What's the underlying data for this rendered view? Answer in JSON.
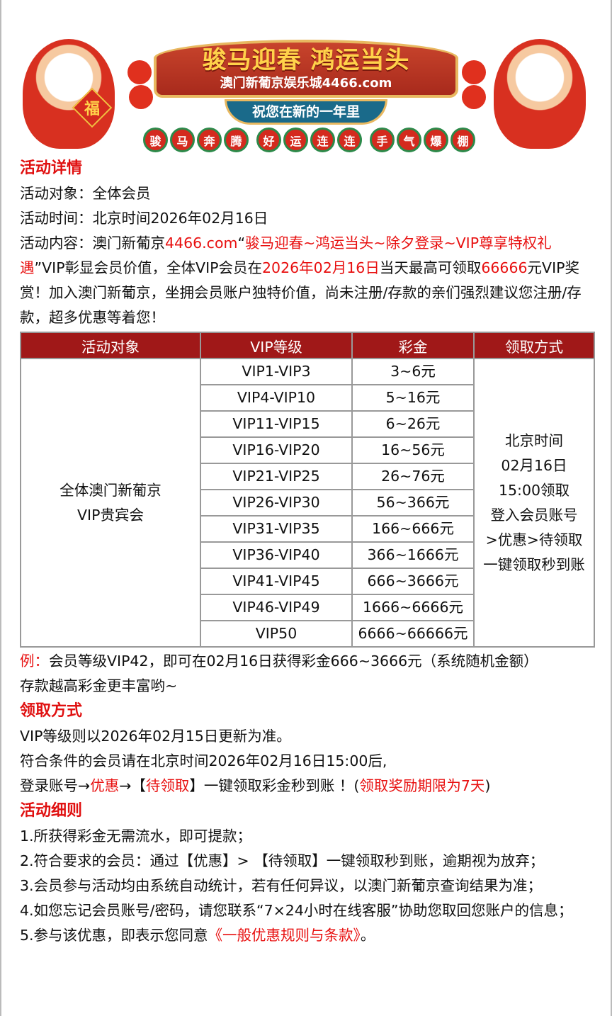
{
  "banner": {
    "title": "骏马迎春 鸿运当头",
    "subtitle": "澳门新葡京娱乐城4466.com",
    "ribbon": "祝您在新的一年里",
    "coins": [
      "骏",
      "马",
      "奔",
      "腾",
      "好",
      "运",
      "连",
      "连",
      "手",
      "气",
      "爆",
      "棚"
    ],
    "badge": "福"
  },
  "details": {
    "heading": "活动详情",
    "target": "活动对象：全体会员",
    "time": "活动时间：北京时间2026年02月16日",
    "content": [
      {
        "t": "活动内容：澳门新葡京",
        "r": false
      },
      {
        "t": "4466.com",
        "r": true
      },
      {
        "t": "“",
        "r": false
      },
      {
        "t": "骏马迎春~鸿运当头~除夕登录~VIP尊享特权礼遇",
        "r": true
      },
      {
        "t": "”VIP彰显会员价值，全体VIP会员在",
        "r": false
      },
      {
        "t": "2026年02月16日",
        "r": true
      },
      {
        "t": "当天最高可领取",
        "r": false
      },
      {
        "t": "66666",
        "r": true
      },
      {
        "t": "元VIP奖赏！加入澳门新葡京，坐拥会员账户独特价值，尚未注册/存款的亲们强烈建议您注册/存款，超多优惠等着您！",
        "r": false
      }
    ]
  },
  "table": {
    "headers": [
      "活动对象",
      "VIP等级",
      "彩金",
      "领取方式"
    ],
    "target": [
      "全体澳门新葡京",
      "VIP贵宾会"
    ],
    "rows": [
      [
        "VIP1-VIP3",
        "3~6元"
      ],
      [
        "VIP4-VIP10",
        "5~16元"
      ],
      [
        "VIP11-VIP15",
        "6~26元"
      ],
      [
        "VIP16-VIP20",
        "16~56元"
      ],
      [
        "VIP21-VIP25",
        "26~76元"
      ],
      [
        "VIP26-VIP30",
        "56~366元"
      ],
      [
        "VIP31-VIP35",
        "166~666元"
      ],
      [
        "VIP36-VIP40",
        "366~1666元"
      ],
      [
        "VIP41-VIP45",
        "666~3666元"
      ],
      [
        "VIP46-VIP49",
        "1666~6666元"
      ],
      [
        "VIP50",
        "6666~66666元"
      ]
    ],
    "method": [
      "北京时间",
      "02月16日",
      "15:00领取",
      "登入会员账号",
      ">优惠>待领取",
      "一键领取秒到账"
    ]
  },
  "example": {
    "label": "例：",
    "text": "会员等级VIP42，即可在02月16日获得彩金666~3666元（系统随机金额）",
    "text2": "存款越高彩金更丰富哟~"
  },
  "claim": {
    "heading": "领取方式",
    "l1": "VIP等级则以2026年02月15日更新为准。",
    "l2": "符合条件的会员请在北京时间2026年02月16日15:00后,",
    "l3": [
      {
        "t": "登录账号→",
        "r": false
      },
      {
        "t": "优惠",
        "r": true
      },
      {
        "t": "→【",
        "r": false
      },
      {
        "t": "待领取",
        "r": true
      },
      {
        "t": "】一键领取彩金秒到账 ！(",
        "r": false
      },
      {
        "t": "领取奖励期限为7天",
        "r": true
      },
      {
        "t": ")",
        "r": false
      }
    ]
  },
  "rules": {
    "heading": "活动细则",
    "items": [
      "1.所获得彩金无需流水，即可提款；",
      "2.符合要求的会员：通过【优惠】> 【待领取】一键领取秒到账，逾期视为放弃；",
      "3.会员参与活动均由系统自动统计，若有任何异议，以澳门新葡京查询结果为准；",
      "4.如您忘记会员账号/密码，请您联系“7×24小时在线客服”协助您取回您账户的信息；"
    ],
    "item5": "5.参与该优惠，即表示您同意",
    "item5_link": "《一般优惠规则与条款》",
    "item5_end": "。"
  },
  "colors": {
    "accent": "#e81010",
    "header": "#a01818"
  }
}
